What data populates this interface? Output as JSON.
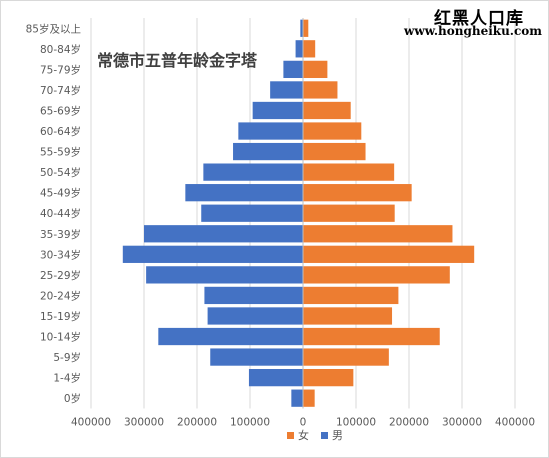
{
  "brand": {
    "name": "红黑人口库",
    "url": "www.hongheiku.com"
  },
  "colors": {
    "female": "#ED7D31",
    "male": "#4472C4",
    "axis_text": "#595959",
    "grid": "#d9d9d9"
  },
  "chart_data": {
    "type": "bar",
    "orientation": "horizontal-population-pyramid",
    "title": "常德市五普年龄金字塔",
    "categories": [
      "0岁",
      "1-4岁",
      "5-9岁",
      "10-14岁",
      "15-19岁",
      "20-24岁",
      "25-29岁",
      "30-34岁",
      "35-39岁",
      "40-44岁",
      "45-49岁",
      "50-54岁",
      "55-59岁",
      "60-64岁",
      "65-69岁",
      "70-74岁",
      "75-79岁",
      "80-84岁",
      "85岁及以上"
    ],
    "series": [
      {
        "name": "女",
        "color": "#ED7D31",
        "values": [
          22000,
          95000,
          162000,
          258000,
          168000,
          180000,
          277000,
          323000,
          282000,
          173000,
          205000,
          172000,
          118000,
          110000,
          90000,
          65000,
          46000,
          23000,
          10000
        ]
      },
      {
        "name": "男",
        "color": "#4472C4",
        "values": [
          22000,
          102000,
          175000,
          273000,
          180000,
          186000,
          296000,
          340000,
          300000,
          192000,
          222000,
          188000,
          132000,
          122000,
          95000,
          62000,
          37000,
          14000,
          5000
        ]
      }
    ],
    "xlim": [
      -400000,
      400000
    ],
    "x_ticks": [
      -400000,
      -300000,
      -200000,
      -100000,
      0,
      100000,
      200000,
      300000,
      400000
    ],
    "x_tick_labels": [
      "400000",
      "300000",
      "200000",
      "100000",
      "0",
      "100000",
      "200000",
      "300000",
      "400000"
    ],
    "xlabel": "",
    "ylabel": "",
    "grid": true,
    "legend_position": "bottom"
  }
}
